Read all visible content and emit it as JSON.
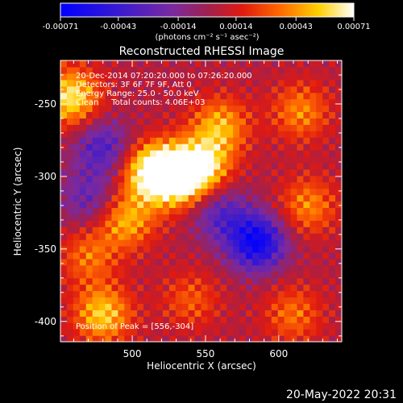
{
  "chart_data": {
    "type": "heatmap",
    "title": "Reconstructed RHESSI Image",
    "xlabel": "Heliocentric X (arcsec)",
    "ylabel": "Heliocentric Y (arcsec)",
    "xlim": [
      451,
      643
    ],
    "ylim": [
      -414,
      -220
    ],
    "x_ticks": [
      500,
      550,
      600
    ],
    "y_ticks": [
      -250,
      -300,
      -350,
      -400
    ],
    "colorbar": {
      "colormap": "blue-purple-red-yellow-white",
      "range": [
        -0.00071,
        0.00071
      ],
      "tick_labels": [
        "-0.00071",
        "-0.00043",
        "-0.00014",
        "0.00014",
        "0.00043",
        "0.00071"
      ],
      "unit_label": "(photons cm⁻² s⁻¹ asec⁻²)"
    },
    "annotations": [
      "20-Dec-2014 07:20:20.000 to 07:26:20.000",
      "Detectors: 3F 6F 7F 9F, Att 0",
      "Energy Range: 25.0 - 50.0 keV",
      "Clean     Total counts: 4.06E+03"
    ],
    "peak_label": "Position of Peak = [556,-304]",
    "peak_position": [
      556,
      -304
    ],
    "intensity_peaks": [
      {
        "x": 530,
        "y": -300,
        "value": 0.00071
      },
      {
        "x": 512,
        "y": -296,
        "value": 0.0006
      },
      {
        "x": 548,
        "y": -293,
        "value": 0.00052
      },
      {
        "x": 458,
        "y": -245,
        "value": 0.00058
      },
      {
        "x": 480,
        "y": -395,
        "value": 0.0005
      },
      {
        "x": 560,
        "y": -265,
        "value": 0.00043
      },
      {
        "x": 496,
        "y": -330,
        "value": 0.00043
      },
      {
        "x": 615,
        "y": -255,
        "value": 0.00035
      },
      {
        "x": 620,
        "y": -320,
        "value": 0.00035
      },
      {
        "x": 610,
        "y": -395,
        "value": 0.0003
      },
      {
        "x": 540,
        "y": -385,
        "value": 0.00025
      },
      {
        "x": 470,
        "y": -355,
        "value": 0.0003
      },
      {
        "x": 585,
        "y": -345,
        "value": -0.0007
      },
      {
        "x": 560,
        "y": -325,
        "value": -0.00035
      },
      {
        "x": 480,
        "y": -280,
        "value": -0.0004
      },
      {
        "x": 470,
        "y": -315,
        "value": -0.0003
      }
    ]
  },
  "footer": {
    "date": "20-May-2022 20:31"
  }
}
